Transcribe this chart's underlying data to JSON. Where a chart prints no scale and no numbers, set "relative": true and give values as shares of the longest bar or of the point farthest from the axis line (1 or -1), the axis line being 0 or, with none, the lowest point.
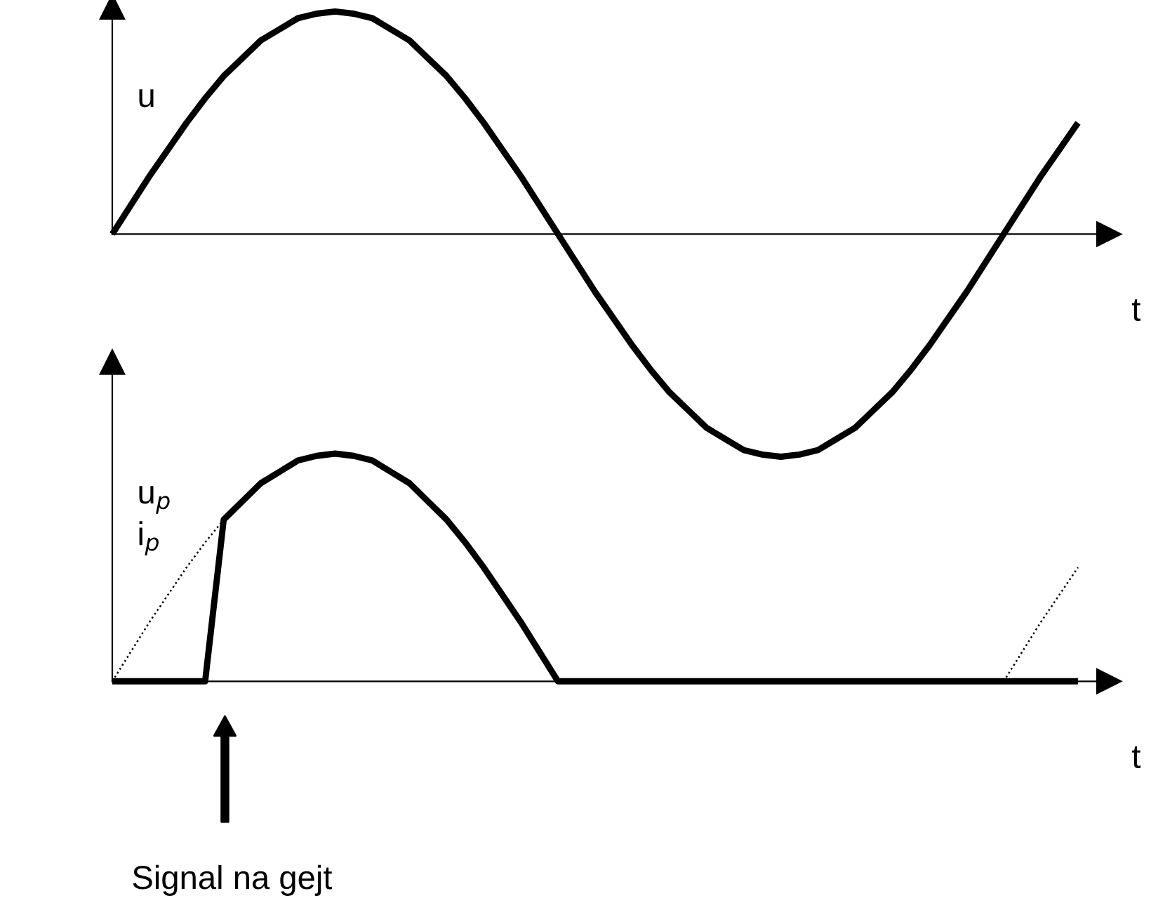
{
  "chart_data": [
    {
      "type": "line",
      "relative": true,
      "ylabel": "u",
      "xlabel": "t",
      "categories": [
        null,
        null,
        null,
        null,
        null,
        null,
        null,
        null,
        null,
        null,
        null,
        null,
        null,
        null,
        null,
        null,
        null,
        null,
        null,
        null,
        null,
        null,
        null,
        null,
        null,
        null,
        null,
        null,
        null,
        null,
        null,
        null,
        null,
        null,
        null,
        null,
        null,
        null,
        null,
        null,
        null,
        null,
        null,
        null,
        null,
        null,
        null,
        null,
        null,
        null,
        null,
        null,
        null
      ],
      "series": [
        {
          "color": "#000000",
          "line_style": "solid",
          "values": [
            0,
            0.13,
            0.26,
            0.38,
            0.5,
            0.61,
            0.71,
            0.79,
            0.87,
            0.92,
            0.97,
            0.99,
            1,
            0.99,
            0.97,
            0.92,
            0.87,
            0.79,
            0.71,
            0.61,
            0.5,
            0.38,
            0.26,
            0.13,
            0,
            -0.13,
            -0.26,
            -0.38,
            -0.5,
            -0.61,
            -0.71,
            -0.79,
            -0.87,
            -0.92,
            -0.97,
            -0.99,
            -1,
            -0.99,
            -0.97,
            -0.92,
            -0.87,
            -0.79,
            -0.71,
            -0.61,
            -0.5,
            -0.38,
            -0.26,
            -0.13,
            0,
            0.13,
            0.26,
            0.38,
            0.5
          ]
        }
      ]
    },
    {
      "type": "line",
      "relative": true,
      "ylabel": "u$_{p}$\ni$_{p}$",
      "xlabel": "t",
      "annotations": [
        "Signal na gejt"
      ],
      "categories": [
        null,
        null,
        null,
        null,
        null,
        null,
        null,
        null,
        null,
        null,
        null,
        null,
        null,
        null,
        null,
        null,
        null,
        null,
        null,
        null,
        null,
        null,
        null,
        null,
        null,
        null,
        null,
        null,
        null,
        null,
        null,
        null,
        null,
        null,
        null,
        null,
        null,
        null,
        null,
        null,
        null,
        null,
        null,
        null,
        null,
        null,
        null,
        null,
        null,
        null,
        null,
        null,
        null
      ],
      "series": [
        {
          "color": "#000000",
          "line_style": "solid",
          "values": [
            0,
            0,
            0,
            0,
            0,
            0,
            0.71,
            0.79,
            0.87,
            0.92,
            0.97,
            0.99,
            1,
            0.99,
            0.97,
            0.92,
            0.87,
            0.79,
            0.71,
            0.61,
            0.5,
            0.38,
            0.26,
            0.13,
            0,
            0,
            0,
            0,
            0,
            0,
            0,
            0,
            0,
            0,
            0,
            0,
            0,
            0,
            0,
            0,
            0,
            0,
            0,
            0,
            0,
            0,
            0,
            0,
            0,
            0,
            0,
            0,
            0
          ]
        },
        {
          "color": "#000000",
          "line_style": "dotted",
          "values": [
            0,
            0.13,
            0.26,
            0.38,
            0.5,
            0.61,
            0.71,
            null,
            null,
            null,
            null,
            null,
            null,
            null,
            null,
            null,
            null,
            null,
            null,
            null,
            null,
            null,
            null,
            null,
            null,
            null,
            null,
            null,
            null,
            null,
            null,
            null,
            null,
            null,
            null,
            null,
            null,
            null,
            null,
            null,
            null,
            null,
            null,
            null,
            null,
            null,
            null,
            null,
            0,
            0.13,
            0.26,
            0.38,
            0.5
          ]
        }
      ]
    }
  ]
}
